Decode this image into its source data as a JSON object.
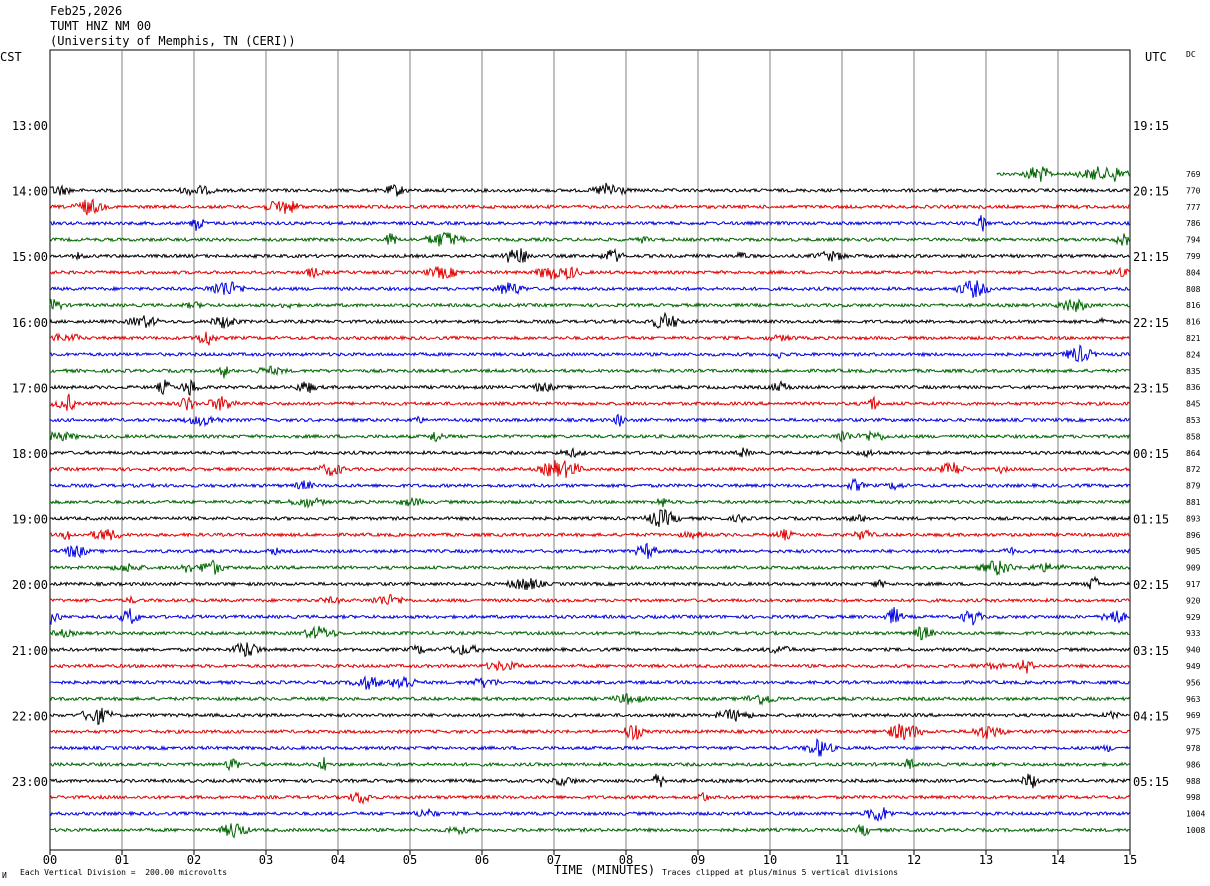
{
  "header": {
    "date": "Feb25,2026",
    "station": "TUMT HNZ NM 00",
    "network": "(University of Memphis, TN (CERI))"
  },
  "tz_left": "CST",
  "tz_right": "UTC",
  "corner_label": "DC",
  "footer": {
    "scale_note": "Each Vertical Division =  200.00 microvolts",
    "xlabel": "TIME (MINUTES)",
    "clip_note": "Traces clipped at plus/minus 5 vertical divisions",
    "corner_mark": "И"
  },
  "chart_data": {
    "type": "line",
    "title": "",
    "xlabel": "TIME (MINUTES)",
    "xlim": [
      0,
      15
    ],
    "x_tick_labels": [
      "00",
      "01",
      "02",
      "03",
      "04",
      "05",
      "06",
      "07",
      "08",
      "09",
      "10",
      "11",
      "12",
      "13",
      "14",
      "15"
    ],
    "grid": "vertical lines each minute",
    "colors": [
      "#000000",
      "#e00000",
      "#0000e0",
      "#006400"
    ],
    "color_cycle": [
      "black",
      "red",
      "blue",
      "green"
    ],
    "left_hour_labels": [
      "13:00",
      "14:00",
      "15:00",
      "16:00",
      "17:00",
      "18:00",
      "19:00",
      "20:00",
      "21:00",
      "22:00",
      "23:00"
    ],
    "right_hour_labels": [
      "19:15",
      "20:15",
      "21:15",
      "22:15",
      "23:15",
      "00:15",
      "01:15",
      "02:15",
      "03:15",
      "04:15",
      "05:15"
    ],
    "first_trace": {
      "start_minute": 13.15,
      "end_minute": 15,
      "color": "green",
      "count": 769
    },
    "trace_counts": [
      770,
      777,
      786,
      794,
      799,
      804,
      808,
      816,
      816,
      821,
      824,
      835,
      836,
      845,
      853,
      858,
      864,
      872,
      879,
      881,
      893,
      896,
      905,
      909,
      917,
      920,
      929,
      933,
      940,
      949,
      956,
      963,
      969,
      975,
      978,
      986,
      988,
      998,
      1004,
      1008
    ]
  }
}
